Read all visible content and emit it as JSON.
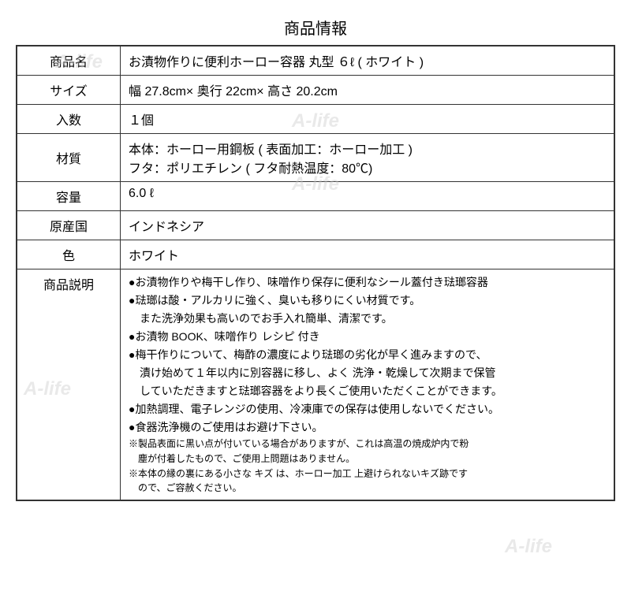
{
  "title": "商品情報",
  "watermark_text": "A-life",
  "rows": {
    "name": {
      "label": "商品名",
      "value": "お漬物作りに便利ホーロー容器 丸型 ６ℓ ( ホワイト )"
    },
    "size": {
      "label": "サイズ",
      "value": "幅 27.8cm× 奥行 22cm× 高さ 20.2cm"
    },
    "quantity": {
      "label": "入数",
      "value": "１個"
    },
    "material": {
      "label": "材質",
      "line1": "本体：ホーロー用鋼板 ( 表面加工：ホーロー加工 )",
      "line2": "フタ：ポリエチレン ( フタ耐熱温度：80℃)"
    },
    "capacity": {
      "label": "容量",
      "value": "6.0 ℓ"
    },
    "origin": {
      "label": "原産国",
      "value": "インドネシア"
    },
    "color": {
      "label": "色",
      "value": "ホワイト"
    },
    "description": {
      "label": "商品説明",
      "bullets": [
        "●お漬物作りや梅干し作り、味噌作り保存に便利なシール蓋付き琺瑯容器",
        "●琺瑯は酸・アルカリに強く、臭いも移りにくい材質です。",
        "　また洗浄効果も高いのでお手入れ簡単、清潔です。",
        "●お漬物 BOOK、味噌作り レシピ 付き",
        "●梅干作りについて、梅酢の濃度により琺瑯の劣化が早く進みますので、",
        "　漬け始めて１年以内に別容器に移し、よく 洗浄・乾燥して次期まで保管",
        "　していただきますと琺瑯容器をより長くご使用いただくことができます。",
        "●加熱調理、電子レンジの使用、冷凍庫での保存は使用しないでください。",
        "●食器洗浄機のご使用はお避け下さい。"
      ],
      "notes": [
        "※製品表面に黒い点が付いている場合がありますが、これは高温の焼成炉内で粉",
        "　塵が付着したもので、ご使用上問題はありません。",
        "※本体の縁の裏にある小さな キズ は、ホーロー加工 上避けられないキズ跡です",
        "　ので、ご容赦ください。"
      ]
    }
  }
}
